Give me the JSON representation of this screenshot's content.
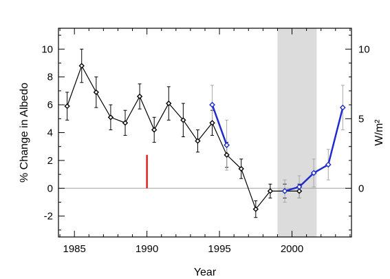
{
  "chart_data": {
    "type": "line",
    "xlabel": "Year",
    "ylabel": "% Change in Albedo",
    "y2label": "W/m²",
    "xlim": [
      1983.9,
      2004.1
    ],
    "ylim": [
      -3.5,
      11.5
    ],
    "y2lim": [
      -3.5,
      11.5
    ],
    "x_ticks": [
      1985,
      1990,
      1995,
      2000
    ],
    "y_ticks": [
      -2,
      0,
      2,
      4,
      6,
      8,
      10
    ],
    "y2_ticks": [
      0,
      5,
      10
    ],
    "grid": false,
    "reference_line_y": 0,
    "shaded_region": {
      "x": [
        1999.0,
        2001.7
      ],
      "color": "#dcdcdc"
    },
    "marker_event": {
      "x": 1990,
      "y": [
        0,
        2.4
      ],
      "color": "#e0201b"
    },
    "series": [
      {
        "color": "#000000",
        "marker": "diamond",
        "points": [
          {
            "x": 1984.5,
            "y": 5.9,
            "err": 1.0
          },
          {
            "x": 1985.5,
            "y": 8.8,
            "err": 1.2
          },
          {
            "x": 1986.5,
            "y": 6.9,
            "err": 1.1
          },
          {
            "x": 1987.5,
            "y": 5.1,
            "err": 0.9
          },
          {
            "x": 1988.5,
            "y": 4.7,
            "err": 0.9
          },
          {
            "x": 1989.5,
            "y": 6.6,
            "err": 0.9
          },
          {
            "x": 1990.5,
            "y": 4.2,
            "err": 0.9
          },
          {
            "x": 1991.5,
            "y": 6.1,
            "err": 1.2
          },
          {
            "x": 1992.5,
            "y": 4.9,
            "err": 1.2
          },
          {
            "x": 1993.5,
            "y": 3.4,
            "err": 0.8
          },
          {
            "x": 1994.5,
            "y": 4.7,
            "err": 0.9
          },
          {
            "x": 1995.5,
            "y": 2.4,
            "err": 0.9
          },
          {
            "x": 1996.5,
            "y": 1.4,
            "err": 0.7
          },
          {
            "x": 1997.5,
            "y": -1.5,
            "err": 0.6
          },
          {
            "x": 1998.5,
            "y": -0.2,
            "err": 0.5
          },
          {
            "x": 1999.5,
            "y": -0.2,
            "err": 0.5
          },
          {
            "x": 2000.5,
            "y": -0.2,
            "err": 0.5
          }
        ]
      },
      {
        "color": "#1f2bcc",
        "marker": "diamond",
        "err_color": "#a8a8a8",
        "segments": [
          [
            {
              "x": 1994.5,
              "y": 6.0,
              "err": 1.4
            },
            {
              "x": 1995.5,
              "y": 3.1,
              "err": 1.8
            }
          ],
          [
            {
              "x": 1999.5,
              "y": -0.2,
              "err": 0.8
            },
            {
              "x": 2000.5,
              "y": 0.1,
              "err": 0.8
            },
            {
              "x": 2001.5,
              "y": 1.1,
              "err": 1.0
            },
            {
              "x": 2002.5,
              "y": 1.7,
              "err": 1.1
            },
            {
              "x": 2003.5,
              "y": 5.8,
              "err": 1.6
            }
          ]
        ]
      }
    ]
  }
}
